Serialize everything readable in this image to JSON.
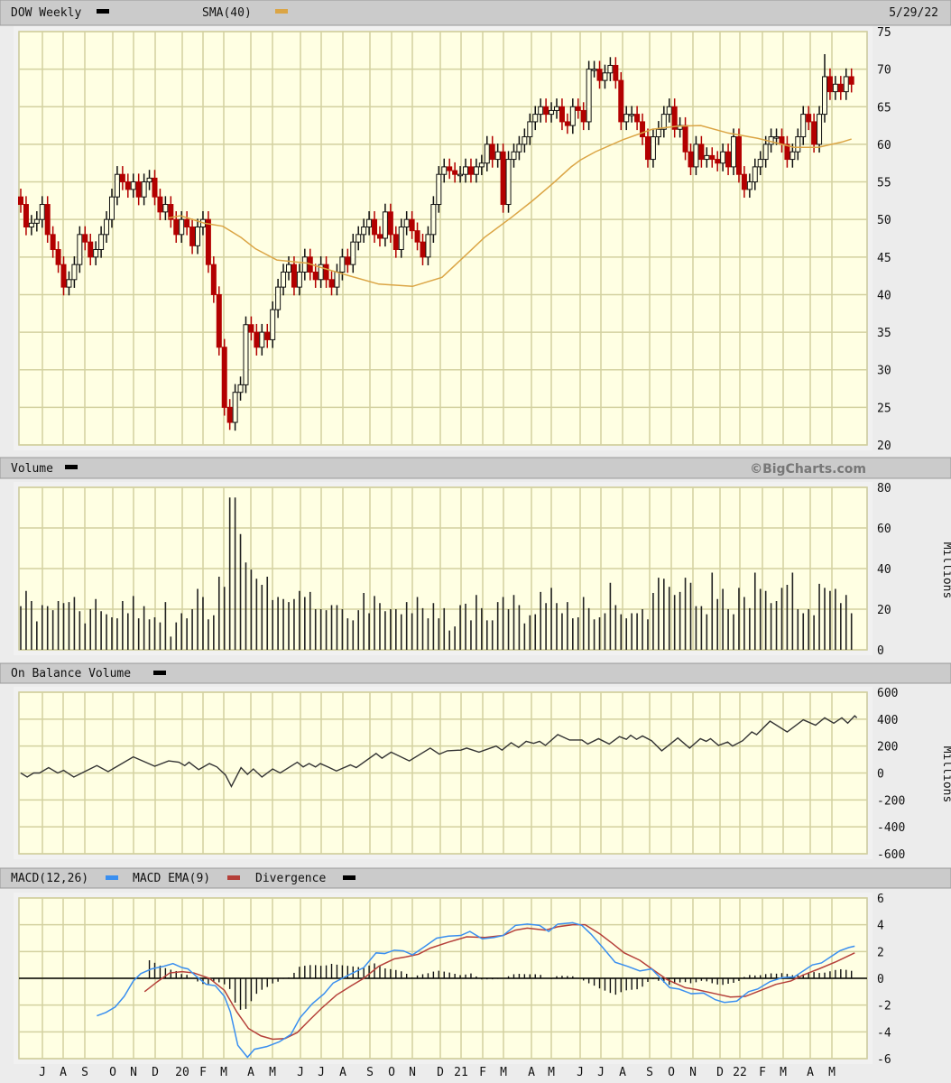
{
  "header": {
    "symbol_label": "DOW Weekly",
    "sma_label": "SMA(40)",
    "date": "5/29/22",
    "colors": {
      "price": "#000000",
      "sma": "#dba545"
    }
  },
  "volume_panel": {
    "title": "Volume",
    "copyright": "©BigCharts.com",
    "units": "Millions"
  },
  "obv_panel": {
    "title": "On Balance Volume",
    "units": "Millions"
  },
  "macd_panel": {
    "macd_label": "MACD(12,26)",
    "ema_label": "MACD EMA(9)",
    "div_label": "Divergence",
    "colors": {
      "macd": "#3a8ff0",
      "ema": "#b5403a",
      "divergence": "#000000"
    }
  },
  "chart_data": [
    {
      "type": "candlestick",
      "title": "DOW Weekly",
      "x_unit": "week index (mid-Jun 2019 to 5/29/22)",
      "xlabels": [
        "J",
        "A",
        "S",
        "O",
        "N",
        "D",
        "20",
        "F",
        "M",
        "A",
        "M",
        "J",
        "J",
        "A",
        "S",
        "O",
        "N",
        "D",
        "21",
        "F",
        "M",
        "A",
        "M",
        "J",
        "J",
        "A",
        "S",
        "O",
        "N",
        "D",
        "22",
        "F",
        "M",
        "A",
        "M"
      ],
      "ylim": [
        20,
        75
      ],
      "yticks": [
        75,
        70,
        65,
        60,
        55,
        50,
        45,
        40,
        35,
        30,
        25,
        20
      ],
      "first_open": 53,
      "close": [
        52,
        49,
        49.5,
        50,
        52,
        48,
        46,
        44,
        41,
        42,
        44,
        48,
        47,
        45,
        46,
        48,
        50,
        53,
        56,
        55,
        54,
        55,
        53,
        55,
        55.5,
        53,
        51,
        52,
        50,
        48,
        50,
        49,
        46.5,
        49,
        50,
        44,
        40,
        33,
        25,
        23,
        27,
        28,
        36,
        35,
        33,
        35,
        34,
        38,
        41,
        43,
        44,
        41,
        43,
        45,
        43,
        42,
        44,
        42,
        41,
        43,
        45,
        44,
        47,
        48,
        49,
        50,
        48,
        47.5,
        51,
        48,
        46,
        49,
        50,
        48.5,
        47,
        45,
        48,
        52,
        56,
        57,
        56.5,
        56,
        56,
        57,
        56,
        57,
        57.5,
        60,
        58,
        59,
        52,
        58,
        59,
        60,
        61,
        63,
        64,
        65,
        64,
        64.5,
        65,
        63,
        62.5,
        65,
        64.5,
        63,
        70,
        70,
        68.5,
        69.5,
        70.5,
        68.5,
        63,
        64,
        64,
        63,
        61,
        58,
        61,
        62,
        64,
        65,
        62,
        62.5,
        59,
        57,
        60,
        58,
        58.5,
        58,
        57.5,
        59,
        57,
        61,
        56,
        54,
        55,
        57,
        58,
        60,
        61,
        61,
        60,
        58,
        59,
        61,
        64,
        63,
        60,
        64,
        69,
        67,
        68,
        67,
        69,
        68
      ],
      "extremes": {
        "low_week": 39,
        "low": 22,
        "high_week": 150,
        "high": 72
      },
      "sma40": [
        [
          27.6,
          50.2
        ],
        [
          29.8,
          50.5
        ],
        [
          34.3,
          49.5
        ],
        [
          37.7,
          49.1
        ],
        [
          41.1,
          47.6
        ],
        [
          43.8,
          46.1
        ],
        [
          47.8,
          44.6
        ],
        [
          53.4,
          44.2
        ],
        [
          55.6,
          43.7
        ],
        [
          61.3,
          42.5
        ],
        [
          66.8,
          41.4
        ],
        [
          73.1,
          41.1
        ],
        [
          78.6,
          42.3
        ],
        [
          82.5,
          44.9
        ],
        [
          86.5,
          47.6
        ],
        [
          91.6,
          50.3
        ],
        [
          95.5,
          52.5
        ],
        [
          99.3,
          54.8
        ],
        [
          102.7,
          57.0
        ],
        [
          104.4,
          57.9
        ],
        [
          107.2,
          59.0
        ],
        [
          112.3,
          60.6
        ],
        [
          117.8,
          62.0
        ],
        [
          122.4,
          62.4
        ],
        [
          126.9,
          62.5
        ],
        [
          132.0,
          61.5
        ],
        [
          137.5,
          60.8
        ],
        [
          144.3,
          59.6
        ],
        [
          148.8,
          59.6
        ],
        [
          153.2,
          60.3
        ],
        [
          155,
          60.7
        ]
      ]
    },
    {
      "type": "bar",
      "title": "Volume",
      "ylabel": "Millions",
      "ylim": [
        0,
        80
      ],
      "yticks": [
        80,
        60,
        40,
        20,
        0
      ],
      "values": [
        21.5,
        29,
        24,
        14,
        22,
        21.5,
        19.5,
        24,
        23,
        23.5,
        26,
        19,
        13,
        20,
        25,
        19,
        17.5,
        16,
        15.5,
        24,
        18,
        26.5,
        15.5,
        21.5,
        15,
        16,
        13.5,
        23.5,
        6.5,
        13.5,
        18,
        15.5,
        20,
        30,
        26,
        15,
        17,
        36,
        31,
        75,
        75,
        57,
        43,
        39.5,
        35,
        32,
        36,
        24.5,
        26,
        25,
        23.5,
        25,
        29,
        26,
        28.5,
        20,
        20,
        19.5,
        22,
        22,
        20,
        15.5,
        14.5,
        19.5,
        28,
        18,
        26.5,
        23,
        19,
        20,
        20,
        17.5,
        23.5,
        18,
        26,
        20.5,
        15.5,
        23,
        15.5,
        20.5,
        9.5,
        11.5,
        22,
        22.7,
        14.5,
        27,
        20.5,
        14.5,
        14.5,
        23.5,
        26,
        20,
        27,
        22,
        13,
        17,
        17.5,
        28.5,
        23,
        30.5,
        23,
        18,
        23.5,
        15.5,
        16,
        26,
        20.5,
        15,
        16,
        18,
        33,
        22,
        17.5,
        15.5,
        18,
        18,
        20,
        15,
        28,
        35.5,
        35,
        31,
        27,
        28.5,
        35.5,
        33,
        21.5,
        21.5,
        17.5,
        38,
        25,
        30,
        20,
        17.5,
        30.5,
        26,
        20.5,
        38,
        30,
        29,
        23,
        24,
        30.5,
        32,
        38,
        20,
        18,
        20,
        17,
        32.5,
        30.5,
        29,
        30,
        23,
        27,
        18
      ]
    },
    {
      "type": "line",
      "title": "On Balance Volume",
      "ylabel": "Millions",
      "ylim": [
        -600,
        600
      ],
      "yticks": [
        600,
        400,
        200,
        0,
        -200,
        -400,
        -600
      ],
      "points": [
        [
          0,
          0
        ],
        [
          1.2,
          -30
        ],
        [
          2.4,
          0
        ],
        [
          3.5,
          0
        ],
        [
          5.2,
          40
        ],
        [
          6.9,
          0
        ],
        [
          8,
          20
        ],
        [
          9.9,
          -30
        ],
        [
          11.4,
          0
        ],
        [
          14.2,
          55
        ],
        [
          16.3,
          10
        ],
        [
          21,
          120
        ],
        [
          25,
          50
        ],
        [
          27.6,
          90
        ],
        [
          29.5,
          80
        ],
        [
          30.6,
          55
        ],
        [
          31.4,
          80
        ],
        [
          33.2,
          25
        ],
        [
          35.2,
          70
        ],
        [
          36.6,
          45
        ],
        [
          38.2,
          -15
        ],
        [
          39.3,
          -100
        ],
        [
          41.1,
          40
        ],
        [
          42.3,
          -10
        ],
        [
          43.4,
          30
        ],
        [
          45,
          -30
        ],
        [
          47,
          30
        ],
        [
          48.4,
          0
        ],
        [
          51.6,
          80
        ],
        [
          52.7,
          45
        ],
        [
          53.8,
          70
        ],
        [
          55,
          45
        ],
        [
          55.9,
          70
        ],
        [
          57.3,
          45
        ],
        [
          58.9,
          15
        ],
        [
          61.5,
          60
        ],
        [
          62.6,
          40
        ],
        [
          66.3,
          145
        ],
        [
          67.4,
          110
        ],
        [
          69.1,
          155
        ],
        [
          72.5,
          90
        ],
        [
          76.4,
          185
        ],
        [
          78.1,
          140
        ],
        [
          79.6,
          165
        ],
        [
          82.1,
          170
        ],
        [
          83.2,
          185
        ],
        [
          85.5,
          155
        ],
        [
          88.7,
          200
        ],
        [
          89.8,
          170
        ],
        [
          91.5,
          225
        ],
        [
          92.9,
          190
        ],
        [
          94.3,
          235
        ],
        [
          95.7,
          220
        ],
        [
          96.8,
          235
        ],
        [
          97.9,
          205
        ],
        [
          100.2,
          285
        ],
        [
          102.4,
          245
        ],
        [
          104.7,
          245
        ],
        [
          105.8,
          215
        ],
        [
          107.8,
          255
        ],
        [
          109.8,
          215
        ],
        [
          111.7,
          270
        ],
        [
          113,
          250
        ],
        [
          113.8,
          280
        ],
        [
          114.9,
          250
        ],
        [
          116,
          275
        ],
        [
          117.7,
          240
        ],
        [
          119.6,
          165
        ],
        [
          122.6,
          260
        ],
        [
          124.8,
          185
        ],
        [
          126.8,
          255
        ],
        [
          127.9,
          235
        ],
        [
          128.7,
          255
        ],
        [
          130.2,
          205
        ],
        [
          131.9,
          230
        ],
        [
          132.8,
          200
        ],
        [
          134.7,
          240
        ],
        [
          136.4,
          305
        ],
        [
          137.3,
          285
        ],
        [
          139.8,
          385
        ],
        [
          143,
          305
        ],
        [
          146,
          395
        ],
        [
          148.3,
          355
        ],
        [
          150,
          410
        ],
        [
          151.7,
          370
        ],
        [
          153.2,
          410
        ],
        [
          154.3,
          370
        ],
        [
          155.6,
          425
        ],
        [
          156,
          410
        ]
      ]
    },
    {
      "type": "line",
      "title": "MACD(12,26)",
      "ylim": [
        -6,
        6
      ],
      "yticks": [
        6,
        4,
        2,
        0,
        -2,
        -4,
        -6
      ],
      "macd": [
        [
          14.2,
          -2.8
        ],
        [
          15.9,
          -2.55
        ],
        [
          17.6,
          -2.15
        ],
        [
          19.3,
          -1.35
        ],
        [
          21,
          -0.2
        ],
        [
          22.4,
          0.35
        ],
        [
          24.4,
          0.7
        ],
        [
          26.7,
          0.9
        ],
        [
          28.4,
          1.1
        ],
        [
          30.1,
          0.8
        ],
        [
          31.2,
          0.7
        ],
        [
          32.9,
          0.1
        ],
        [
          34.6,
          -0.45
        ],
        [
          36.3,
          -0.55
        ],
        [
          38,
          -1.35
        ],
        [
          39.1,
          -2.5
        ],
        [
          40.5,
          -5.0
        ],
        [
          42.3,
          -5.9
        ],
        [
          43.6,
          -5.3
        ],
        [
          45.9,
          -5.1
        ],
        [
          48.2,
          -4.75
        ],
        [
          50.4,
          -4.2
        ],
        [
          52.1,
          -2.95
        ],
        [
          54.4,
          -1.9
        ],
        [
          56.6,
          -1.15
        ],
        [
          58.3,
          -0.35
        ],
        [
          60,
          0
        ],
        [
          61.7,
          0.35
        ],
        [
          64,
          0.8
        ],
        [
          66.3,
          1.9
        ],
        [
          67.9,
          1.85
        ],
        [
          69.7,
          2.1
        ],
        [
          71.4,
          2.05
        ],
        [
          73.1,
          1.75
        ],
        [
          75.3,
          2.35
        ],
        [
          77.6,
          3.0
        ],
        [
          79.8,
          3.15
        ],
        [
          82.1,
          3.2
        ],
        [
          83.8,
          3.5
        ],
        [
          86.1,
          2.95
        ],
        [
          88.3,
          3.05
        ],
        [
          90,
          3.2
        ],
        [
          92.3,
          3.95
        ],
        [
          94.5,
          4.05
        ],
        [
          96.8,
          3.95
        ],
        [
          98.5,
          3.5
        ],
        [
          100.2,
          4.05
        ],
        [
          103,
          4.15
        ],
        [
          104.7,
          3.95
        ],
        [
          106.4,
          3.3
        ],
        [
          108.7,
          2.25
        ],
        [
          110.9,
          1.2
        ],
        [
          113.2,
          0.9
        ],
        [
          115.5,
          0.55
        ],
        [
          117.7,
          0.7
        ],
        [
          119.4,
          0
        ],
        [
          121.1,
          -0.7
        ],
        [
          122.8,
          -0.8
        ],
        [
          125.1,
          -1.15
        ],
        [
          127.4,
          -1.1
        ],
        [
          129.6,
          -1.6
        ],
        [
          131.3,
          -1.8
        ],
        [
          133.6,
          -1.7
        ],
        [
          135.8,
          -1.0
        ],
        [
          137.5,
          -0.8
        ],
        [
          139.8,
          -0.25
        ],
        [
          142.1,
          0.05
        ],
        [
          144.3,
          0.1
        ],
        [
          146,
          0.55
        ],
        [
          147.7,
          1.0
        ],
        [
          149.4,
          1.15
        ],
        [
          151.1,
          1.6
        ],
        [
          152.8,
          2.05
        ],
        [
          154.5,
          2.3
        ],
        [
          155.6,
          2.4
        ]
      ],
      "ema9": [
        [
          23.1,
          -1.0
        ],
        [
          25.5,
          -0.25
        ],
        [
          27.8,
          0.4
        ],
        [
          30.1,
          0.5
        ],
        [
          32.3,
          0.4
        ],
        [
          35.2,
          0
        ],
        [
          38,
          -0.9
        ],
        [
          40.3,
          -2.5
        ],
        [
          42.5,
          -3.75
        ],
        [
          44.8,
          -4.3
        ],
        [
          47,
          -4.55
        ],
        [
          49.3,
          -4.5
        ],
        [
          51.6,
          -4.05
        ],
        [
          53.8,
          -3.15
        ],
        [
          56.1,
          -2.25
        ],
        [
          58.9,
          -1.25
        ],
        [
          61.7,
          -0.55
        ],
        [
          64,
          0
        ],
        [
          66.8,
          0.9
        ],
        [
          69.7,
          1.45
        ],
        [
          71.9,
          1.6
        ],
        [
          74.2,
          1.8
        ],
        [
          76.4,
          2.25
        ],
        [
          79.8,
          2.7
        ],
        [
          83.2,
          3.1
        ],
        [
          86.6,
          3.05
        ],
        [
          90,
          3.2
        ],
        [
          92.3,
          3.6
        ],
        [
          94.5,
          3.75
        ],
        [
          97.9,
          3.6
        ],
        [
          100.2,
          3.85
        ],
        [
          103,
          4.0
        ],
        [
          105.3,
          4.0
        ],
        [
          108.1,
          3.3
        ],
        [
          110.4,
          2.6
        ],
        [
          112.6,
          1.9
        ],
        [
          115.5,
          1.35
        ],
        [
          118.3,
          0.55
        ],
        [
          120.6,
          -0.1
        ],
        [
          124,
          -0.7
        ],
        [
          126.2,
          -0.85
        ],
        [
          129.6,
          -1.15
        ],
        [
          132.4,
          -1.4
        ],
        [
          135.2,
          -1.35
        ],
        [
          138.1,
          -0.9
        ],
        [
          140.9,
          -0.45
        ],
        [
          143.7,
          -0.2
        ],
        [
          146,
          0.25
        ],
        [
          148.9,
          0.7
        ],
        [
          152.2,
          1.25
        ],
        [
          155.6,
          1.9
        ]
      ]
    }
  ]
}
